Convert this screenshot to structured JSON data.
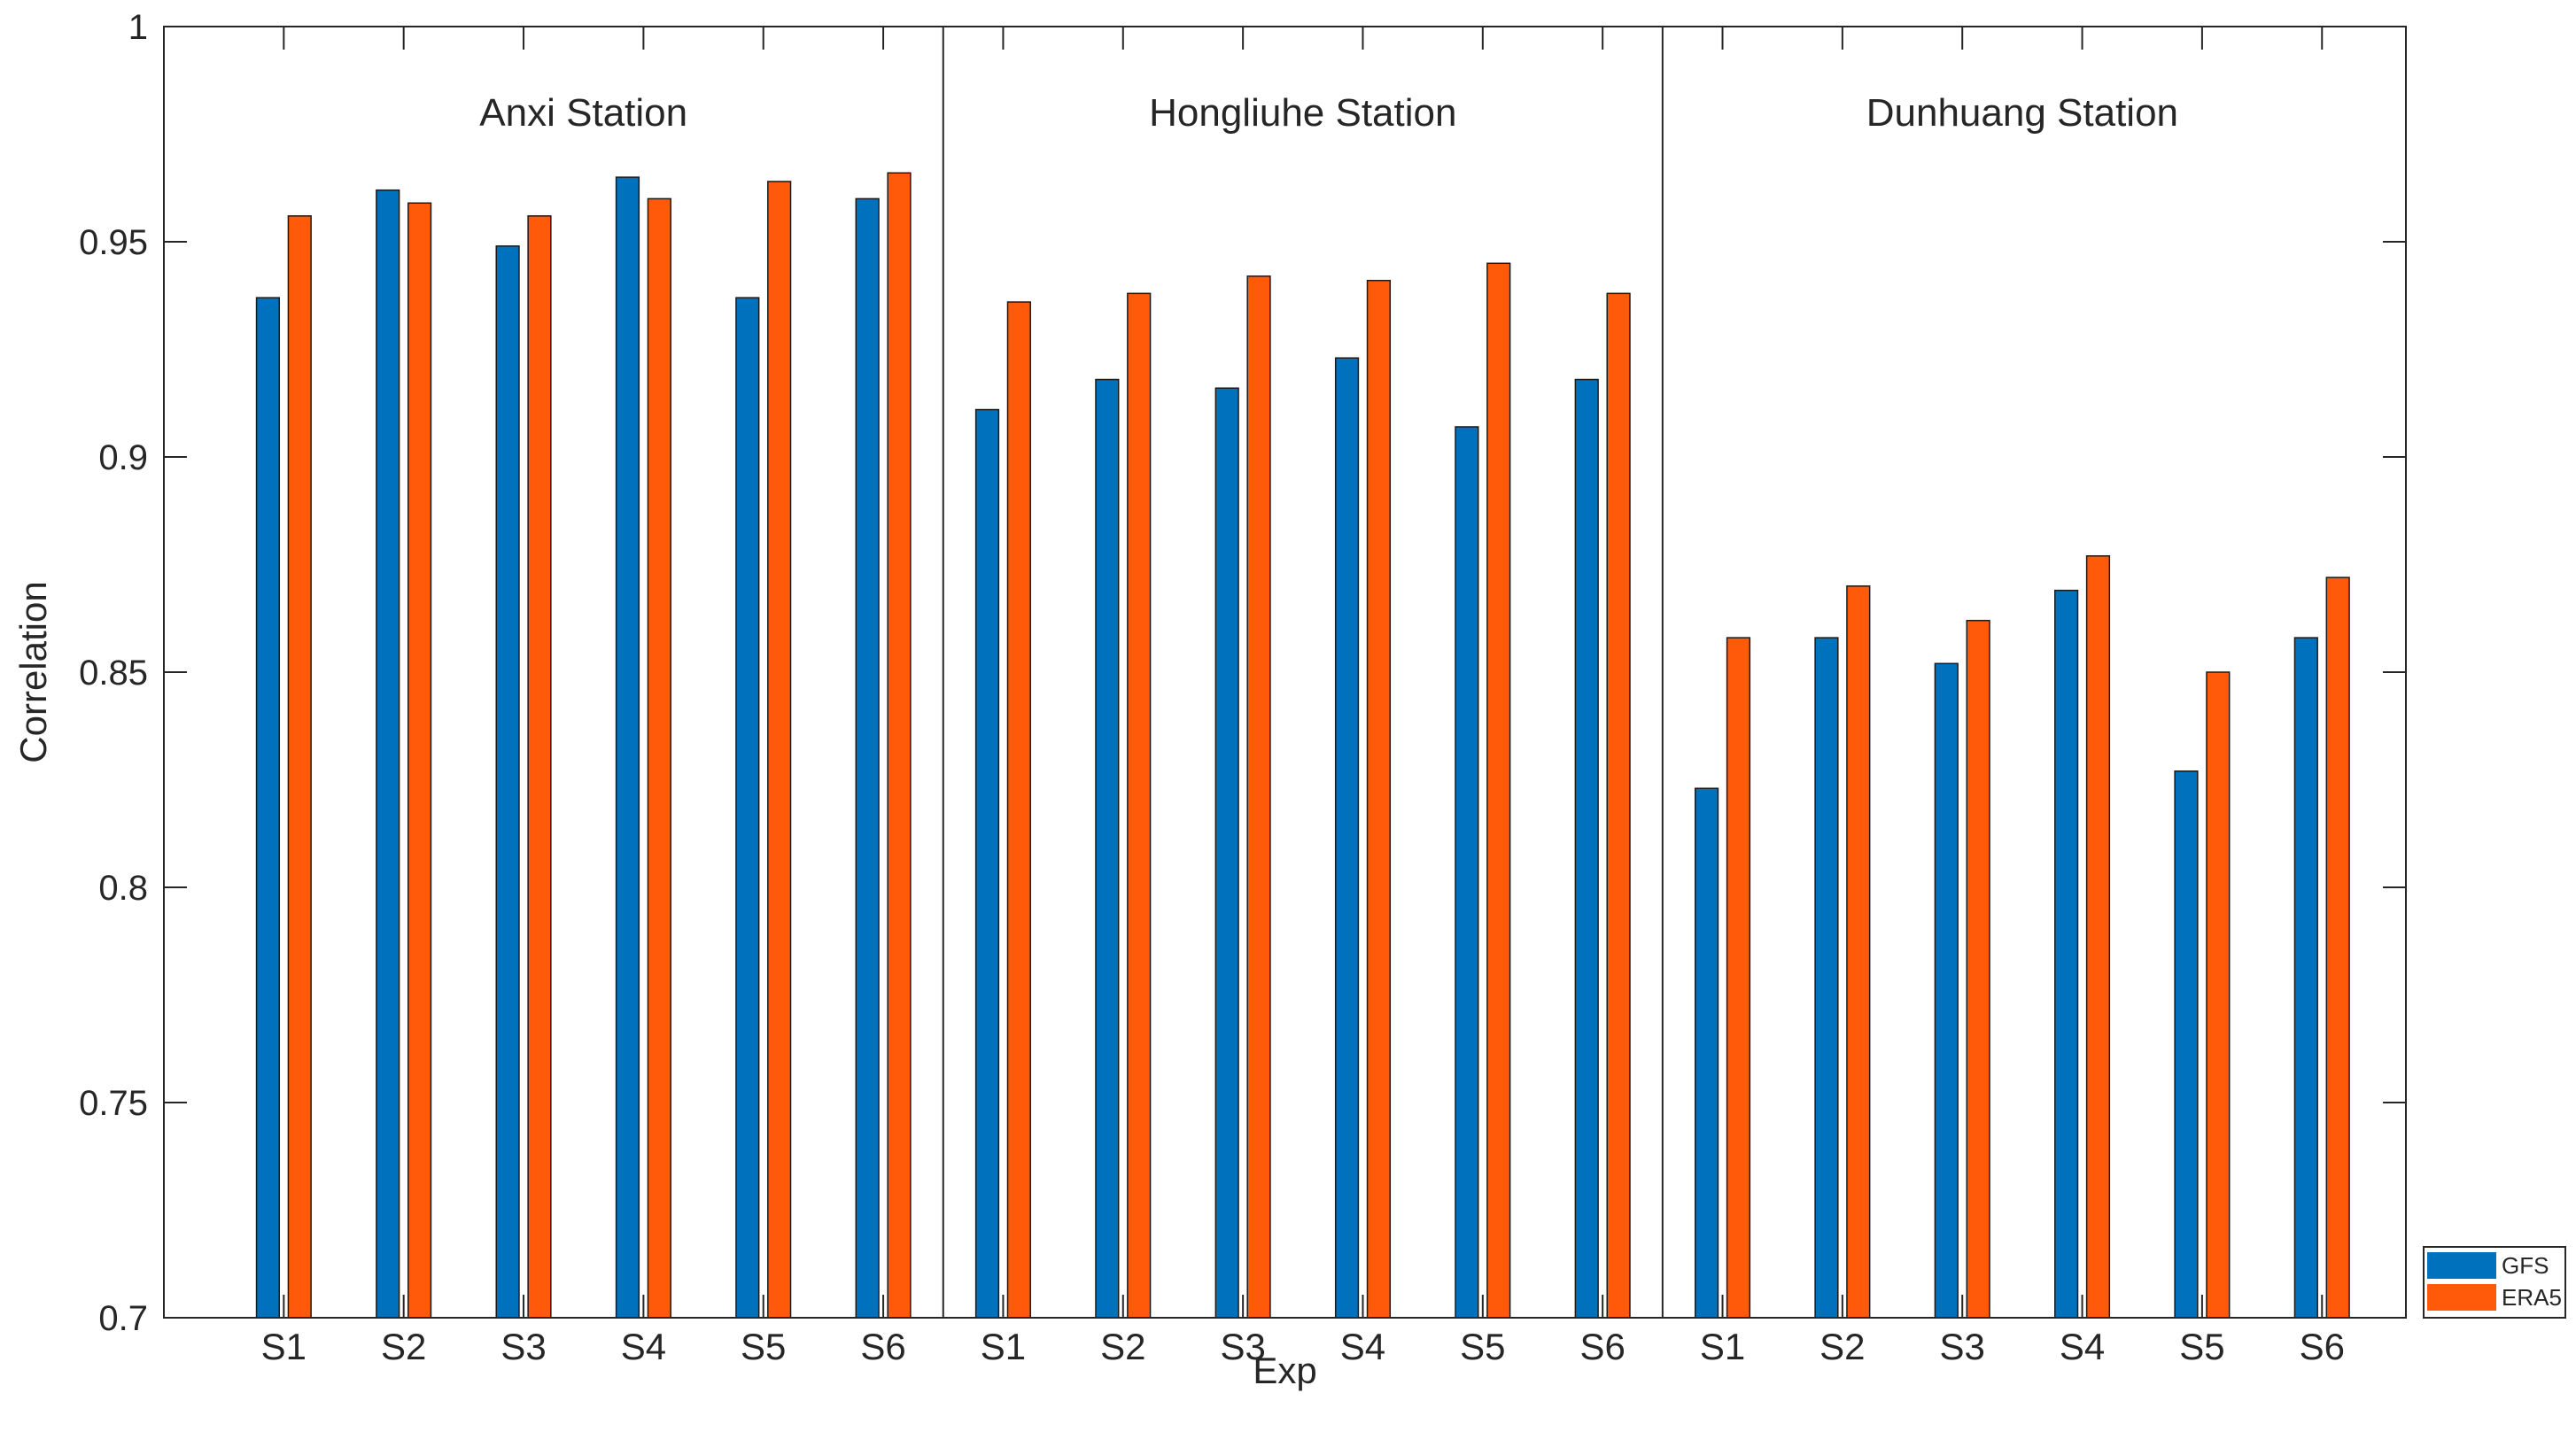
{
  "chart_data": {
    "type": "bar",
    "xlabel": "Exp",
    "ylabel": "Correlation",
    "ylim": [
      0.7,
      1
    ],
    "yticks": [
      0.7,
      0.75,
      0.8,
      0.85,
      0.9,
      0.95,
      1
    ],
    "ytick_labels": [
      "0.7",
      "0.75",
      "0.8",
      "0.85",
      "0.9",
      "0.95",
      "1"
    ],
    "legend_position": "bottom-right, outside plot",
    "groups": [
      {
        "title": "Anxi Station",
        "categories": [
          "S1",
          "S2",
          "S3",
          "S4",
          "S5",
          "S6"
        ],
        "series": [
          {
            "name": "GFS",
            "values": [
              0.937,
              0.962,
              0.949,
              0.965,
              0.937,
              0.96
            ]
          },
          {
            "name": "ERA5",
            "values": [
              0.956,
              0.959,
              0.956,
              0.96,
              0.964,
              0.966
            ]
          }
        ]
      },
      {
        "title": "Hongliuhe Station",
        "categories": [
          "S1",
          "S2",
          "S3",
          "S4",
          "S5",
          "S6"
        ],
        "series": [
          {
            "name": "GFS",
            "values": [
              0.911,
              0.918,
              0.916,
              0.923,
              0.907,
              0.918
            ]
          },
          {
            "name": "ERA5",
            "values": [
              0.936,
              0.938,
              0.942,
              0.941,
              0.945,
              0.938
            ]
          }
        ]
      },
      {
        "title": "Dunhuang Station",
        "categories": [
          "S1",
          "S2",
          "S3",
          "S4",
          "S5",
          "S6"
        ],
        "series": [
          {
            "name": "GFS",
            "values": [
              0.823,
              0.858,
              0.852,
              0.869,
              0.827,
              0.858
            ]
          },
          {
            "name": "ERA5",
            "values": [
              0.858,
              0.87,
              0.862,
              0.877,
              0.85,
              0.872
            ]
          }
        ]
      }
    ],
    "legend": [
      {
        "name": "GFS",
        "color": "#0072BD"
      },
      {
        "name": "ERA5",
        "color": "#FF5A0A"
      }
    ]
  }
}
